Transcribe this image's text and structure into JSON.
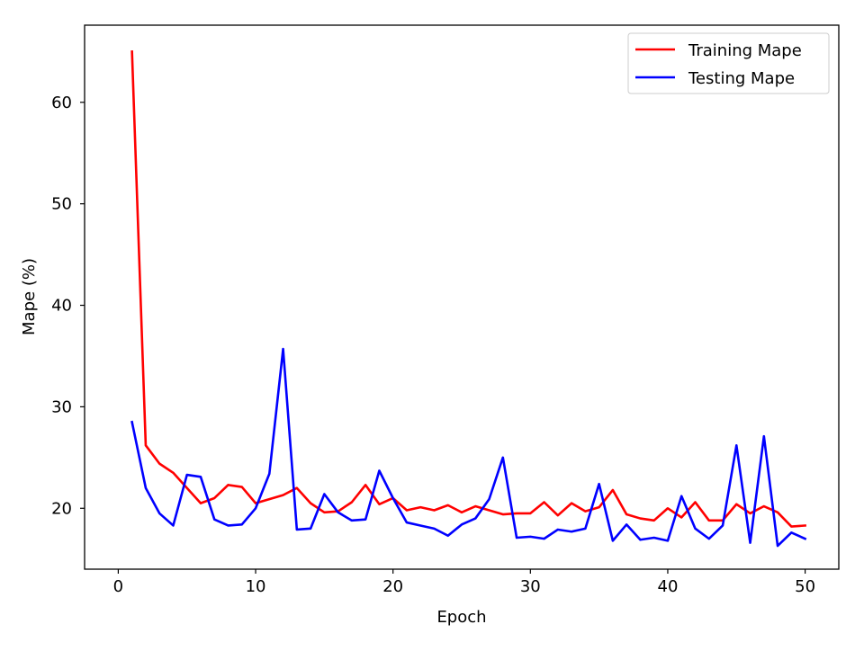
{
  "chart_data": {
    "type": "line",
    "xlabel": "Epoch",
    "ylabel": "Mape (%)",
    "xlim": [
      -2.45,
      52.45
    ],
    "ylim": [
      14.0,
      67.6
    ],
    "xticks": [
      0,
      10,
      20,
      30,
      40,
      50
    ],
    "yticks": [
      20,
      30,
      40,
      50,
      60
    ],
    "grid": false,
    "legend_position": "top-right",
    "x": [
      1,
      2,
      3,
      4,
      5,
      6,
      7,
      8,
      9,
      10,
      11,
      12,
      13,
      14,
      15,
      16,
      17,
      18,
      19,
      20,
      21,
      22,
      23,
      24,
      25,
      26,
      27,
      28,
      29,
      30,
      31,
      32,
      33,
      34,
      35,
      36,
      37,
      38,
      39,
      40,
      41,
      42,
      43,
      44,
      45,
      46,
      47,
      48,
      49,
      50
    ],
    "series": [
      {
        "name": "Training Mape",
        "color": "#ff0000",
        "values": [
          65.0,
          26.2,
          24.4,
          23.5,
          22.0,
          20.5,
          21.0,
          22.3,
          22.1,
          20.5,
          20.9,
          21.3,
          22.0,
          20.5,
          19.6,
          19.7,
          20.6,
          22.3,
          20.4,
          21.0,
          19.8,
          20.1,
          19.8,
          20.3,
          19.6,
          20.2,
          19.8,
          19.4,
          19.5,
          19.5,
          20.6,
          19.3,
          20.5,
          19.7,
          20.1,
          21.8,
          19.4,
          19.0,
          18.8,
          20.0,
          19.1,
          20.6,
          18.8,
          18.8,
          20.4,
          19.5,
          20.2,
          19.6,
          18.2,
          18.3
        ]
      },
      {
        "name": "Testing Mape",
        "color": "#0000ff",
        "values": [
          28.5,
          22.0,
          19.5,
          18.3,
          23.3,
          23.1,
          18.9,
          18.3,
          18.4,
          20.0,
          23.4,
          35.7,
          17.9,
          18.0,
          21.4,
          19.6,
          18.8,
          18.9,
          23.7,
          21.0,
          18.6,
          18.3,
          18.0,
          17.3,
          18.4,
          19.0,
          20.9,
          25.0,
          17.1,
          17.2,
          17.0,
          17.9,
          17.7,
          18.0,
          22.4,
          16.8,
          18.4,
          16.9,
          17.1,
          16.8,
          21.2,
          18.0,
          17.0,
          18.3,
          26.2,
          16.6,
          27.1,
          16.3,
          17.6,
          17.0
        ]
      }
    ]
  }
}
